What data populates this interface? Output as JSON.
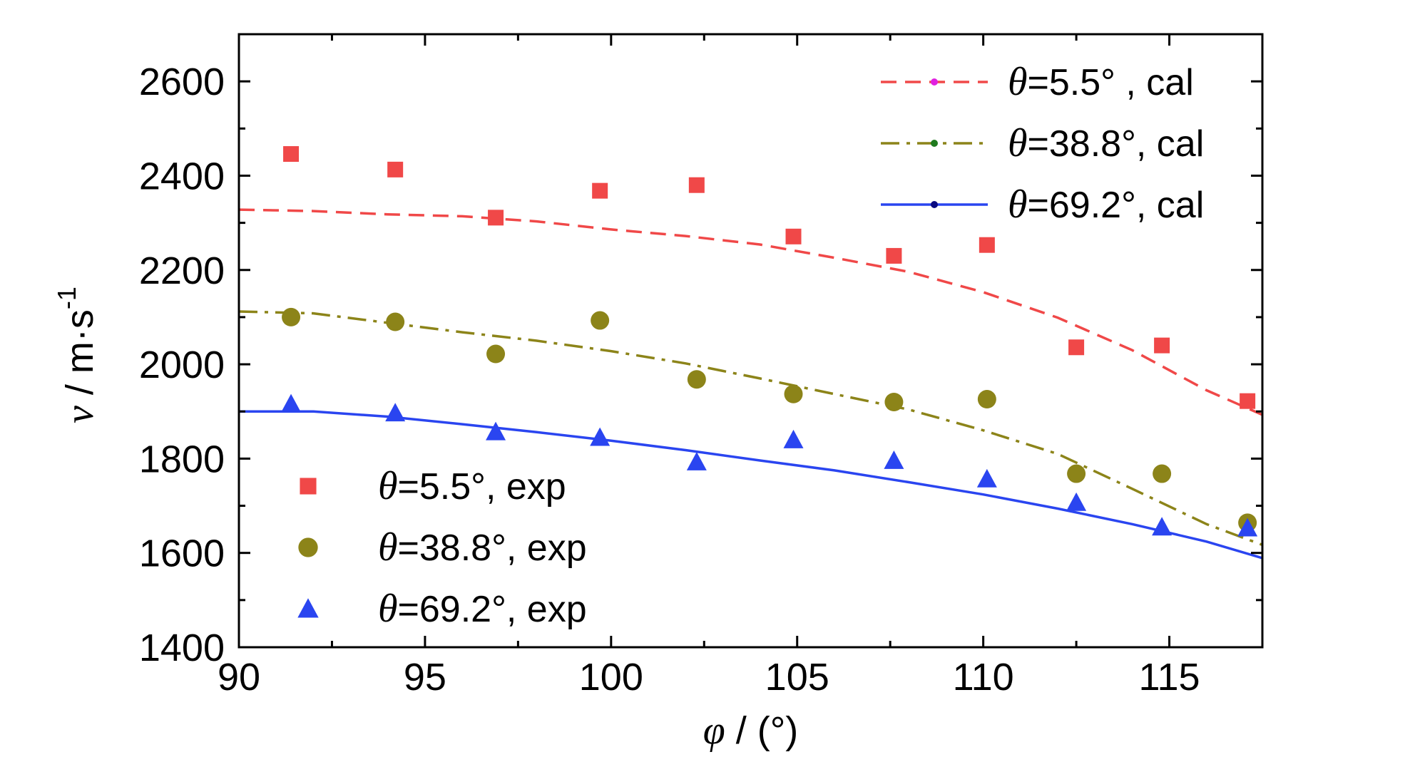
{
  "chart_data": {
    "type": "scatter",
    "xlabel": {
      "symbol": "φ",
      "rest": " / (°)"
    },
    "ylabel": {
      "symbol": "v",
      "rest": " / m·s",
      "sup": "-1"
    },
    "xlim": [
      90,
      117.5
    ],
    "ylim": [
      1400,
      2700
    ],
    "xticks": [
      90,
      95,
      100,
      105,
      110,
      115
    ],
    "yticks": [
      1400,
      1600,
      1800,
      2000,
      2200,
      2400,
      2600
    ],
    "xtick_labels": [
      "90",
      "95",
      "100",
      "105",
      "110",
      "115"
    ],
    "ytick_labels": [
      "1400",
      "1600",
      "1800",
      "2000",
      "2200",
      "2400",
      "2600"
    ],
    "grid": false,
    "series": [
      {
        "name": "=5.5°, exp",
        "prefix": "θ",
        "kind": "points",
        "marker": "square",
        "color": "#f04848",
        "x": [
          91.4,
          94.2,
          96.9,
          99.7,
          102.3,
          104.9,
          107.6,
          110.1,
          112.5,
          114.8,
          117.1
        ],
        "y": [
          2446,
          2413,
          2311,
          2368,
          2380,
          2271,
          2230,
          2253,
          2036,
          2040,
          1922
        ]
      },
      {
        "name": "=38.8°, exp",
        "prefix": "θ",
        "kind": "points",
        "marker": "circle",
        "color": "#8c8419",
        "x": [
          91.4,
          94.2,
          96.9,
          99.7,
          102.3,
          104.9,
          107.6,
          110.1,
          112.5,
          114.8,
          117.1
        ],
        "y": [
          2100,
          2090,
          2022,
          2093,
          1968,
          1937,
          1920,
          1926,
          1768,
          1768,
          1664
        ]
      },
      {
        "name": "=69.2°, exp",
        "prefix": "θ",
        "kind": "points",
        "marker": "triangle",
        "color": "#2a45f0",
        "x": [
          91.4,
          94.2,
          96.9,
          99.7,
          102.3,
          104.9,
          107.6,
          110.1,
          112.5,
          114.8,
          117.1
        ],
        "y": [
          1916,
          1897,
          1857,
          1845,
          1793,
          1840,
          1796,
          1757,
          1707,
          1655,
          1653
        ]
      },
      {
        "name": "=5.5° , cal",
        "prefix": "θ",
        "kind": "line",
        "dash": "dashed",
        "color": "#f04848",
        "legend_marker_color": "#e020e0",
        "x": [
          90,
          92,
          94,
          96,
          98,
          100,
          102,
          104,
          106,
          108,
          110,
          112,
          114,
          116,
          117.5
        ],
        "y": [
          2328,
          2325,
          2318,
          2314,
          2303,
          2286,
          2272,
          2254,
          2226,
          2196,
          2153,
          2099,
          2030,
          1945,
          1893
        ]
      },
      {
        "name": "=38.8°, cal",
        "prefix": "θ",
        "kind": "line",
        "dash": "dashdot",
        "color": "#8c8419",
        "legend_marker_color": "#1f7a1f",
        "x": [
          90,
          92,
          94,
          96,
          98,
          100,
          102,
          104,
          106,
          108,
          110,
          112,
          114,
          116,
          117.5
        ],
        "y": [
          2112,
          2108,
          2088,
          2068,
          2050,
          2028,
          2002,
          1970,
          1937,
          1904,
          1860,
          1810,
          1736,
          1661,
          1617
        ]
      },
      {
        "name": "=69.2°, cal",
        "prefix": "θ",
        "kind": "line",
        "dash": "solid",
        "color": "#2a45f0",
        "legend_marker_color": "#0a0a80",
        "x": [
          90,
          92,
          94,
          96,
          98,
          100,
          102,
          104,
          106,
          108,
          110,
          112,
          114,
          116,
          117.5
        ],
        "y": [
          1900,
          1900,
          1889,
          1873,
          1856,
          1838,
          1818,
          1796,
          1775,
          1750,
          1724,
          1694,
          1661,
          1624,
          1589
        ]
      }
    ],
    "legends": [
      {
        "placement": "top-right",
        "series": [
          3,
          4,
          5
        ]
      },
      {
        "placement": "bottom-left",
        "series": [
          0,
          1,
          2
        ]
      }
    ]
  }
}
